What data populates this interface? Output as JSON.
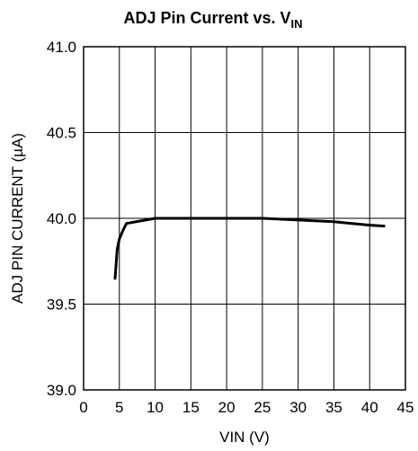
{
  "chart_data": {
    "type": "line",
    "title": "ADJ Pin Current vs. V",
    "title_subscript": "IN",
    "xlabel": "VIN (V)",
    "ylabel": "ADJ PIN CURRENT (µA)",
    "xlim": [
      0,
      45
    ],
    "ylim": [
      39.0,
      41.0
    ],
    "x_ticks": [
      "0",
      "5",
      "10",
      "15",
      "20",
      "25",
      "30",
      "35",
      "40",
      "45"
    ],
    "y_ticks": [
      "41.0",
      "40.5",
      "40.0",
      "39.5",
      "39.0"
    ],
    "grid": true,
    "colors": {
      "line": "#000000",
      "grid": "#000000",
      "background": "#ffffff"
    },
    "series": [
      {
        "x": [
          4.4,
          4.7,
          5.0,
          5.5,
          6.0,
          10.0,
          15.0,
          20.0,
          25.0,
          30.0,
          35.0,
          40.0,
          42.0
        ],
        "y": [
          39.65,
          39.82,
          39.88,
          39.93,
          39.97,
          40.0,
          40.0,
          40.0,
          40.0,
          39.99,
          39.98,
          39.96,
          39.955
        ]
      }
    ]
  }
}
